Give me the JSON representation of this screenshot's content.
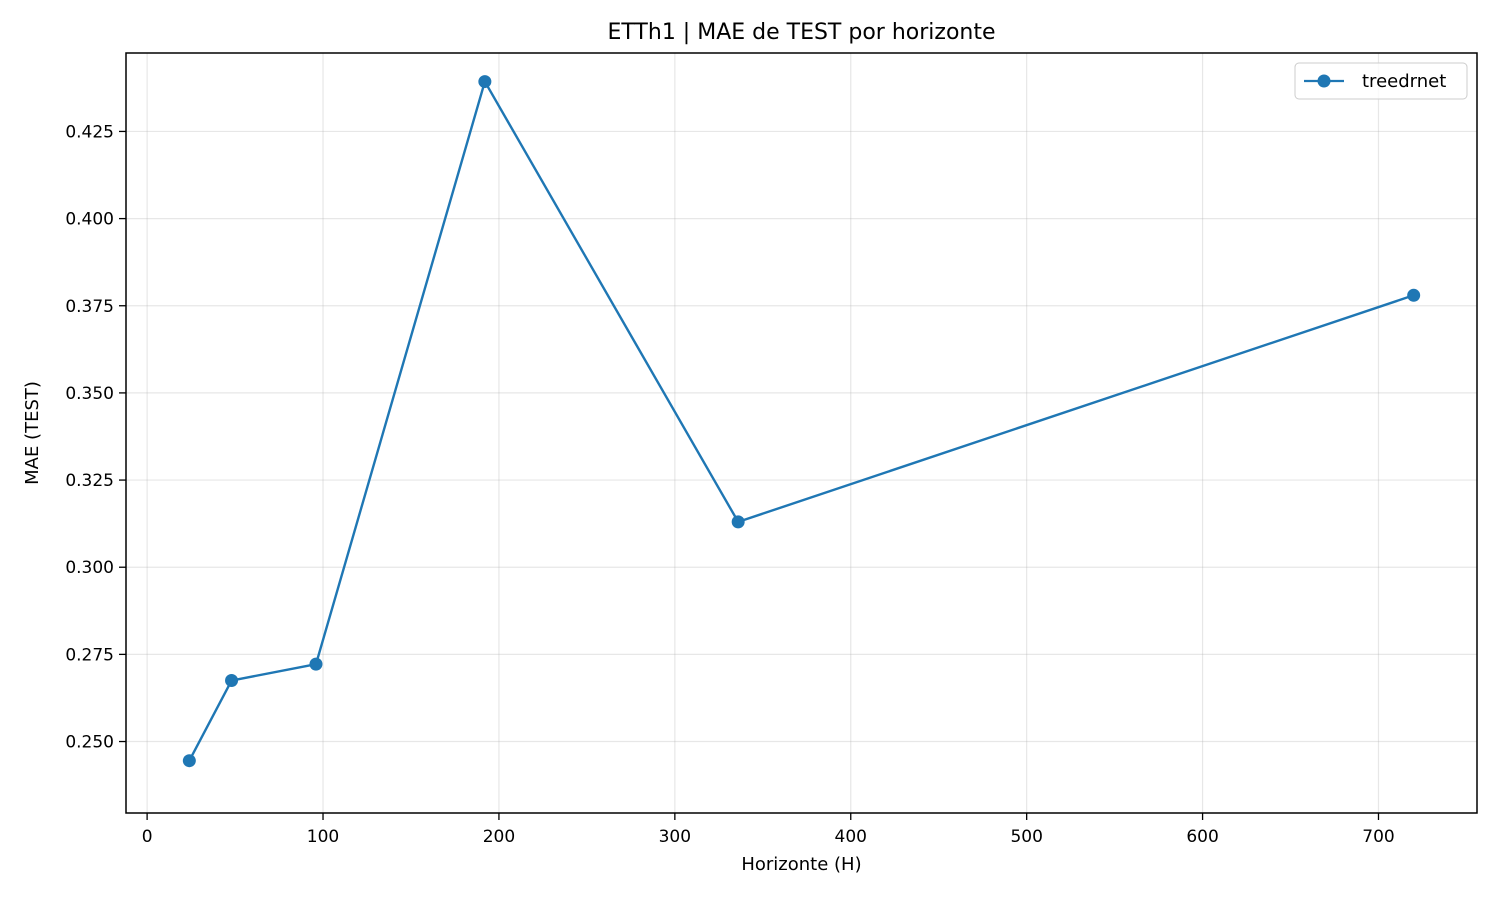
{
  "chart_data": {
    "type": "line",
    "title": "ETTh1 | MAE de TEST por horizonte",
    "xlabel": "Horizonte (H)",
    "ylabel": "MAE (TEST)",
    "xlim": [
      -12,
      756
    ],
    "ylim": [
      0.2295,
      0.4475
    ],
    "x_ticks": [
      0,
      100,
      200,
      300,
      400,
      500,
      600,
      700
    ],
    "y_ticks": [
      0.25,
      0.275,
      0.3,
      0.325,
      0.35,
      0.375,
      0.4,
      0.425
    ],
    "grid": true,
    "legend_position": "top-right",
    "series": [
      {
        "name": "treedrnet",
        "color": "#1f77b4",
        "marker": "circle",
        "x": [
          24,
          48,
          96,
          192,
          336,
          720
        ],
        "y": [
          0.2445,
          0.2675,
          0.2722,
          0.4393,
          0.313,
          0.378
        ]
      }
    ]
  }
}
